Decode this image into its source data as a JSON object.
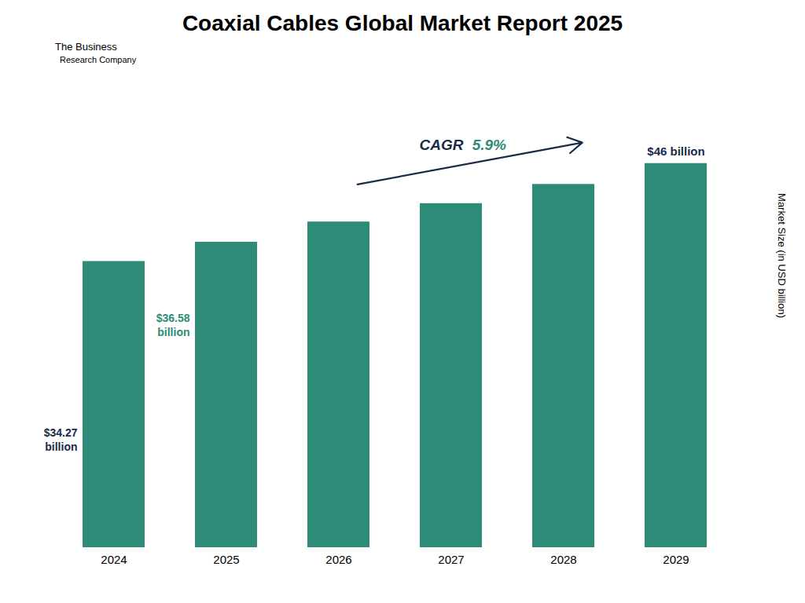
{
  "chart_data": {
    "type": "bar",
    "title": "Coaxial Cables Global Market Report 2025",
    "categories": [
      "2024",
      "2025",
      "2026",
      "2027",
      "2028",
      "2029"
    ],
    "values": [
      34.27,
      36.58,
      39.0,
      41.2,
      43.5,
      46.0
    ],
    "color": "#2e8b77",
    "ylabel": "Market Size (in USD billion)",
    "ylim": [
      0,
      55
    ],
    "tick_labels": "x",
    "grid": false,
    "annotations": [
      {
        "text": "$34.27\nbillion",
        "color": "#1a2b4a",
        "category": "2024"
      },
      {
        "text": "$36.58\nbillion",
        "color": "#2e8b77",
        "category": "2025"
      },
      {
        "text": "$46 billion",
        "color": "#1a2b4a",
        "category": "2029"
      },
      {
        "parts": [
          {
            "text": "CAGR ",
            "color": "#1a2b4a"
          },
          {
            "text": "5.9%",
            "color": "#2e8b77"
          }
        ],
        "arrow_from": "2026",
        "arrow_to": "2028"
      },
      {
        "text": "The Business"
      },
      {
        "text": "Research Company"
      }
    ]
  }
}
